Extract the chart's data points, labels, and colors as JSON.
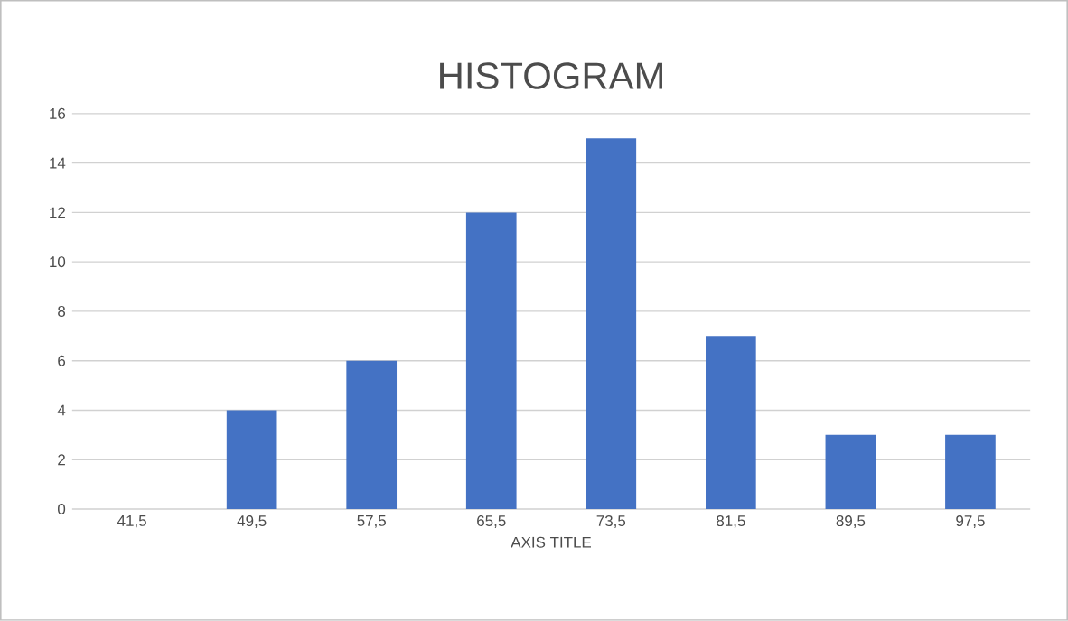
{
  "chart_data": {
    "type": "bar",
    "title": "HISTOGRAM",
    "xlabel": "AXIS TITLE",
    "categories": [
      "41,5",
      "49,5",
      "57,5",
      "65,5",
      "73,5",
      "81,5",
      "89,5",
      "97,5"
    ],
    "values": [
      0,
      4,
      6,
      12,
      15,
      7,
      3,
      3
    ],
    "color": "#4472c4",
    "ylim": [
      0,
      16
    ],
    "yticks": [
      0,
      2,
      4,
      6,
      8,
      10,
      12,
      14,
      16
    ],
    "grid": "y"
  }
}
